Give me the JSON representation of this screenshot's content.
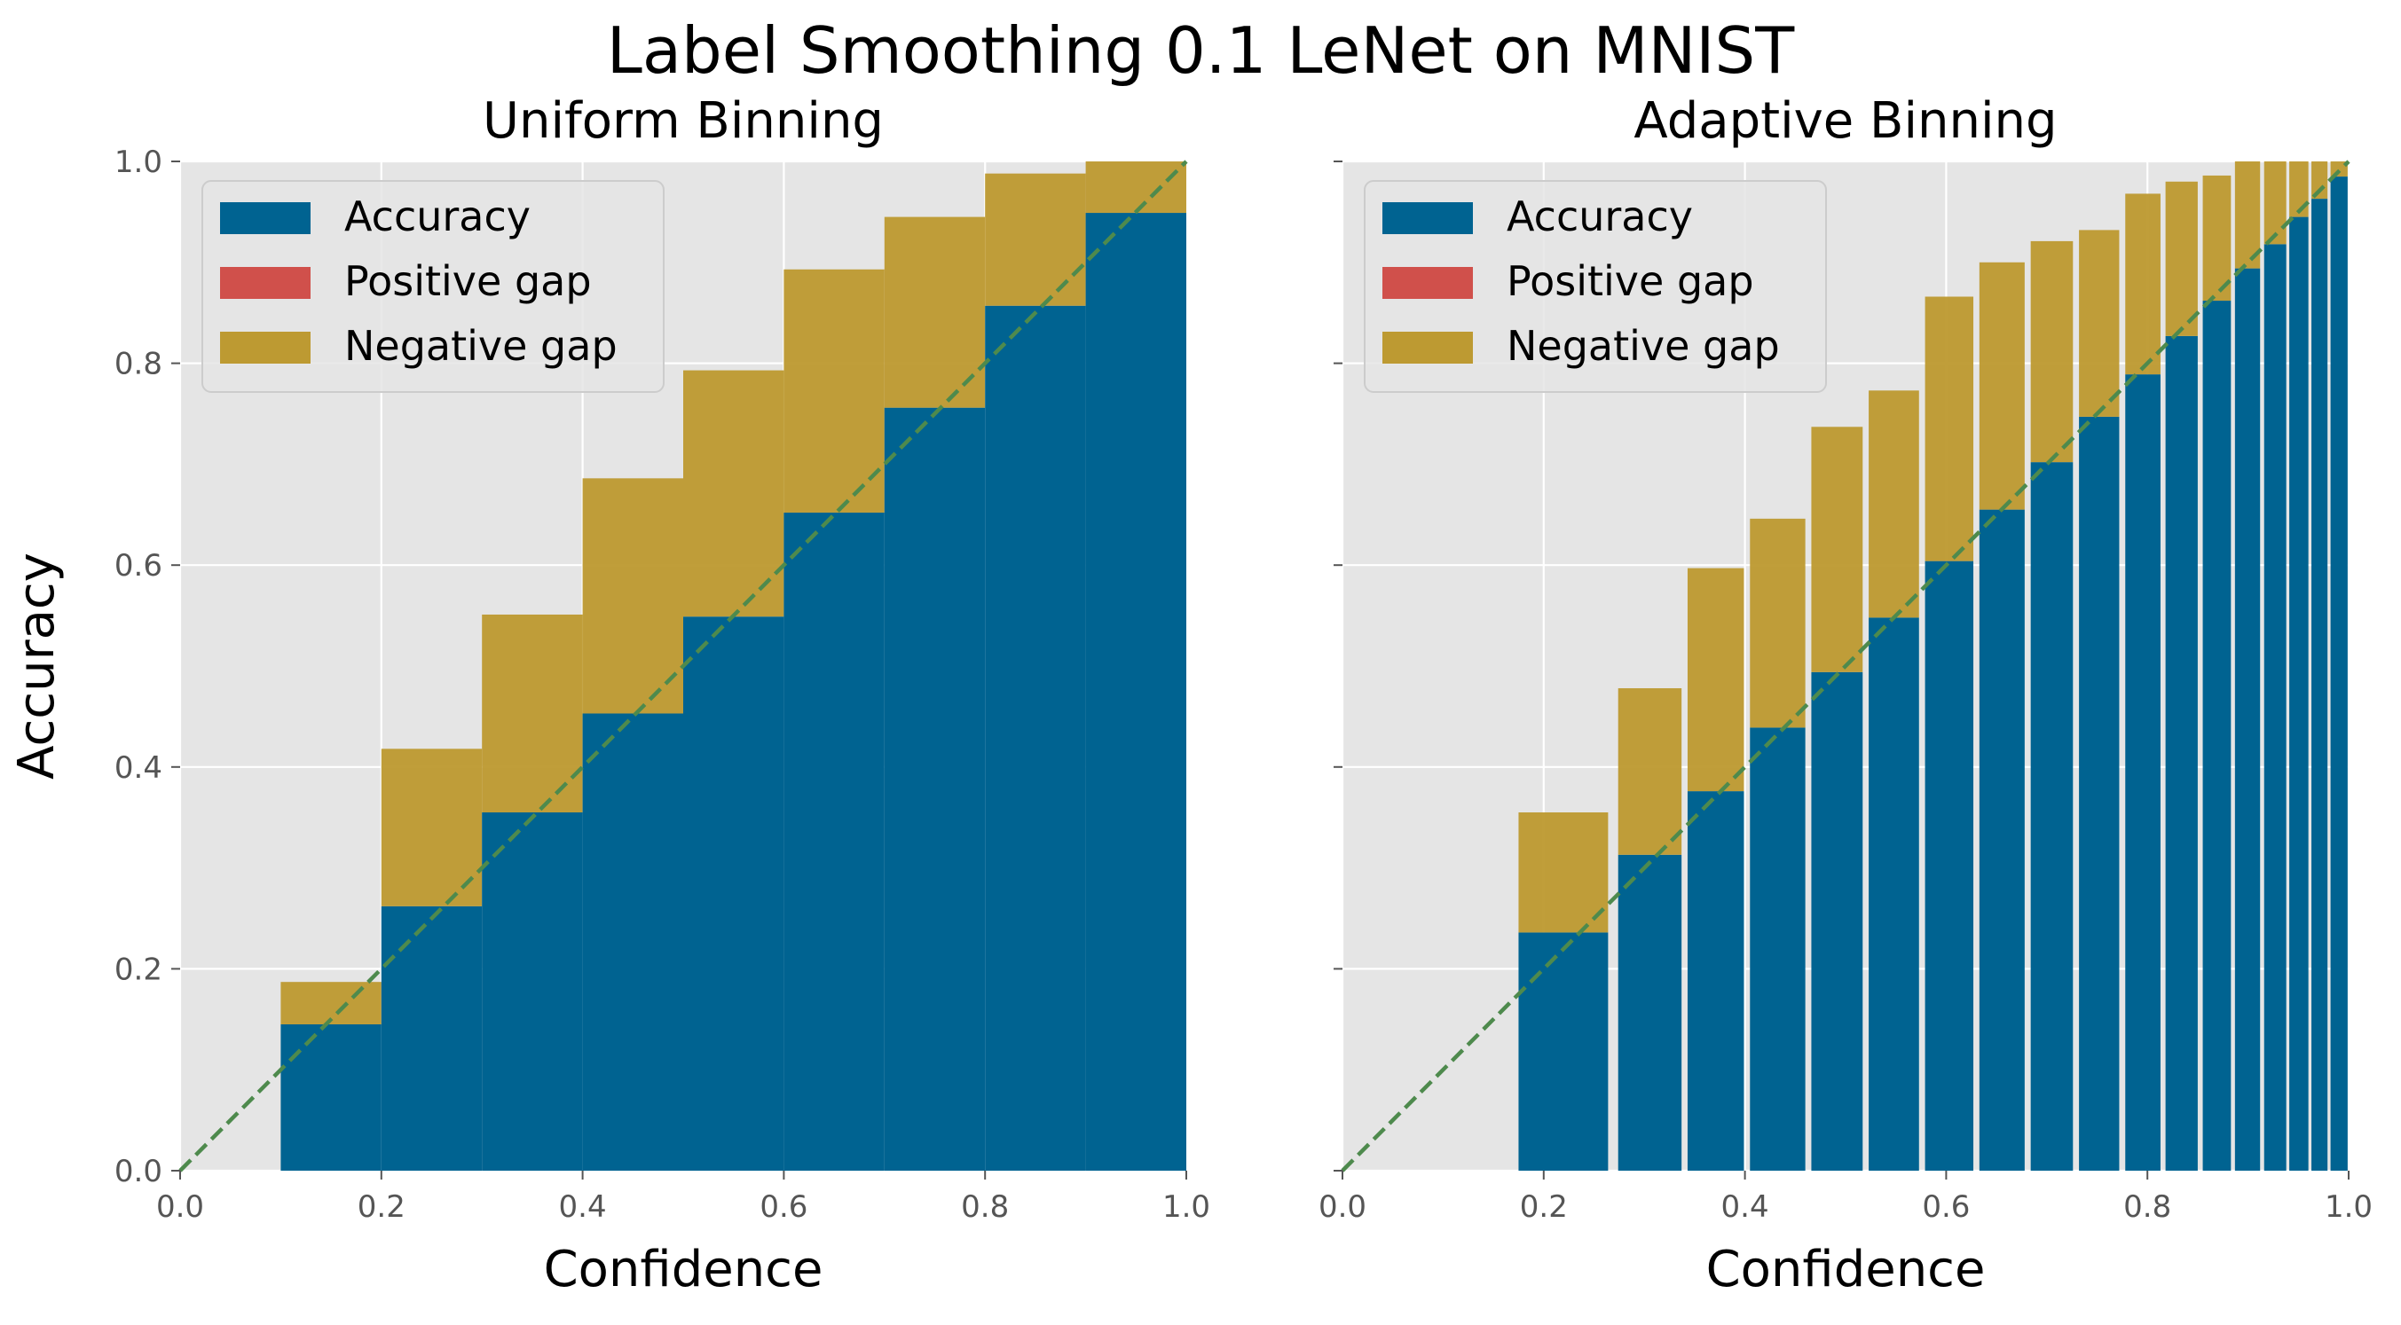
{
  "figure": {
    "suptitle": "Label Smoothing 0.1 LeNet on MNIST"
  },
  "colors": {
    "background": "#E5E5E5",
    "grid": "#FFFFFF",
    "accuracy": "#006391",
    "positive_gap": "#D0504B",
    "negative_gap": "#BD9A32",
    "diagonal": "#4E8A4D",
    "text": "#000000",
    "tick_text": "#555555"
  },
  "chart_data": [
    {
      "type": "bar",
      "title": "Uniform Binning",
      "xlabel": "Confidence",
      "ylabel": "Accuracy",
      "xlim": [
        0,
        1
      ],
      "ylim": [
        0,
        1
      ],
      "xticks": [
        "0.0",
        "0.2",
        "0.4",
        "0.6",
        "0.8",
        "1.0"
      ],
      "yticks": [
        "0.0",
        "0.2",
        "0.4",
        "0.6",
        "0.8",
        "1.0"
      ],
      "grid": true,
      "legend": {
        "position": "upper-left",
        "entries": [
          "Accuracy",
          "Positive gap",
          "Negative gap"
        ]
      },
      "diagonal": true,
      "bins": [
        {
          "left": 0.1,
          "right": 0.2,
          "accuracy": 0.145,
          "confidence": 0.187
        },
        {
          "left": 0.2,
          "right": 0.3,
          "accuracy": 0.262,
          "confidence": 0.418
        },
        {
          "left": 0.3,
          "right": 0.4,
          "accuracy": 0.355,
          "confidence": 0.551
        },
        {
          "left": 0.4,
          "right": 0.5,
          "accuracy": 0.453,
          "confidence": 0.686
        },
        {
          "left": 0.5,
          "right": 0.6,
          "accuracy": 0.549,
          "confidence": 0.793
        },
        {
          "left": 0.6,
          "right": 0.7,
          "accuracy": 0.652,
          "confidence": 0.893
        },
        {
          "left": 0.7,
          "right": 0.8,
          "accuracy": 0.756,
          "confidence": 0.945
        },
        {
          "left": 0.8,
          "right": 0.9,
          "accuracy": 0.857,
          "confidence": 0.988
        },
        {
          "left": 0.9,
          "right": 1.0,
          "accuracy": 0.949,
          "confidence": 1.0
        }
      ]
    },
    {
      "type": "bar",
      "title": "Adaptive Binning",
      "xlabel": "Confidence",
      "ylabel": "",
      "xlim": [
        0,
        1
      ],
      "ylim": [
        0,
        1
      ],
      "xticks": [
        "0.0",
        "0.2",
        "0.4",
        "0.6",
        "0.8",
        "1.0"
      ],
      "yticks": [],
      "grid": true,
      "legend": {
        "position": "upper-left",
        "entries": [
          "Accuracy",
          "Positive gap",
          "Negative gap"
        ]
      },
      "diagonal": true,
      "bins": [
        {
          "left": 0.175,
          "right": 0.264,
          "accuracy": 0.236,
          "confidence": 0.355
        },
        {
          "left": 0.274,
          "right": 0.337,
          "accuracy": 0.313,
          "confidence": 0.478
        },
        {
          "left": 0.343,
          "right": 0.399,
          "accuracy": 0.376,
          "confidence": 0.597
        },
        {
          "left": 0.405,
          "right": 0.46,
          "accuracy": 0.439,
          "confidence": 0.646
        },
        {
          "left": 0.466,
          "right": 0.517,
          "accuracy": 0.494,
          "confidence": 0.737
        },
        {
          "left": 0.523,
          "right": 0.573,
          "accuracy": 0.548,
          "confidence": 0.773
        },
        {
          "left": 0.579,
          "right": 0.627,
          "accuracy": 0.604,
          "confidence": 0.866
        },
        {
          "left": 0.633,
          "right": 0.678,
          "accuracy": 0.655,
          "confidence": 0.9
        },
        {
          "left": 0.684,
          "right": 0.726,
          "accuracy": 0.702,
          "confidence": 0.921
        },
        {
          "left": 0.732,
          "right": 0.772,
          "accuracy": 0.747,
          "confidence": 0.932
        },
        {
          "left": 0.778,
          "right": 0.813,
          "accuracy": 0.789,
          "confidence": 0.968
        },
        {
          "left": 0.818,
          "right": 0.85,
          "accuracy": 0.827,
          "confidence": 0.98
        },
        {
          "left": 0.855,
          "right": 0.883,
          "accuracy": 0.862,
          "confidence": 0.986
        },
        {
          "left": 0.887,
          "right": 0.912,
          "accuracy": 0.894,
          "confidence": 1.0
        },
        {
          "left": 0.916,
          "right": 0.938,
          "accuracy": 0.918,
          "confidence": 1.0
        },
        {
          "left": 0.941,
          "right": 0.96,
          "accuracy": 0.945,
          "confidence": 1.0
        },
        {
          "left": 0.963,
          "right": 0.979,
          "accuracy": 0.963,
          "confidence": 1.0
        },
        {
          "left": 0.982,
          "right": 0.999,
          "accuracy": 0.985,
          "confidence": 1.0
        }
      ]
    }
  ]
}
